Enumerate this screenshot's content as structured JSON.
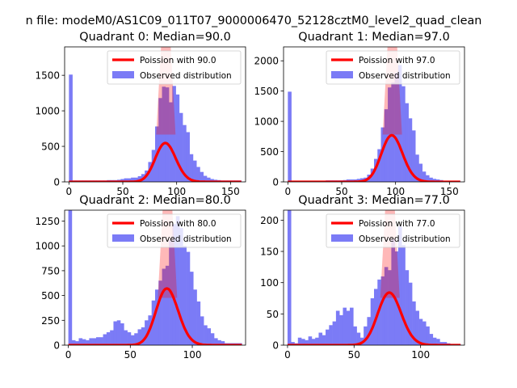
{
  "figure": {
    "suptitle": "n file: modeM0/AS1C09_011T07_9000006470_52128cztM0_level2_quad_clean"
  },
  "colors": {
    "hist": "#7b7bf6",
    "curve": "#ff0000",
    "axis": "#000000"
  },
  "chart_data": [
    {
      "type": "bar",
      "title": "Quadrant 0: Median=90.0",
      "legend": {
        "curve": "Poission with 90.0",
        "hist": "Observed distribution",
        "placement": "top-right"
      },
      "xlim": [
        -4,
        164
      ],
      "ylim": [
        0,
        1900
      ],
      "xticks": [
        0,
        50,
        100,
        150
      ],
      "yticks": [
        0,
        500,
        1000,
        1500
      ],
      "bin_width": 3.2,
      "bins": [
        [
          0,
          1510
        ],
        [
          3.2,
          20
        ],
        [
          6.4,
          20
        ],
        [
          9.6,
          20
        ],
        [
          12.8,
          20
        ],
        [
          16,
          20
        ],
        [
          19.2,
          20
        ],
        [
          22.4,
          20
        ],
        [
          25.6,
          20
        ],
        [
          28.8,
          20
        ],
        [
          32,
          20
        ],
        [
          35.2,
          25
        ],
        [
          38.4,
          25
        ],
        [
          41.6,
          25
        ],
        [
          44.8,
          30
        ],
        [
          48,
          40
        ],
        [
          51.2,
          50
        ],
        [
          54.4,
          50
        ],
        [
          57.6,
          60
        ],
        [
          60.8,
          60
        ],
        [
          64,
          80
        ],
        [
          67.2,
          110
        ],
        [
          70.4,
          160
        ],
        [
          73.6,
          280
        ],
        [
          76.8,
          450
        ],
        [
          80,
          780
        ],
        [
          83.2,
          1180
        ],
        [
          86.4,
          1340
        ],
        [
          89.6,
          1330
        ],
        [
          92.8,
          1120
        ],
        [
          96,
          1350
        ],
        [
          99.2,
          1230
        ],
        [
          102.4,
          970
        ],
        [
          105.6,
          800
        ],
        [
          108.8,
          700
        ],
        [
          112,
          390
        ],
        [
          115.2,
          300
        ],
        [
          118.4,
          210
        ],
        [
          121.6,
          140
        ],
        [
          124.8,
          85
        ],
        [
          128,
          60
        ],
        [
          131.2,
          40
        ],
        [
          134.4,
          30
        ],
        [
          137.6,
          25
        ],
        [
          140.8,
          20
        ],
        [
          144,
          20
        ],
        [
          147.2,
          20
        ],
        [
          150.4,
          20
        ],
        [
          153.6,
          20
        ],
        [
          156.8,
          20
        ]
      ],
      "poisson": {
        "lambda": 90.0,
        "total": 13000,
        "x_range": [
          0,
          160
        ],
        "fill_height": 1900
      }
    },
    {
      "type": "bar",
      "title": "Quadrant 1: Median=97.0",
      "legend": {
        "curve": "Poission with 97.0",
        "hist": "Observed distribution",
        "placement": "top-right"
      },
      "xlim": [
        -4,
        164
      ],
      "ylim": [
        0,
        2230
      ],
      "xticks": [
        0,
        50,
        100,
        150
      ],
      "yticks": [
        0,
        500,
        1000,
        1500,
        2000
      ],
      "bin_width": 3.2,
      "bins": [
        [
          0,
          1490
        ],
        [
          3.2,
          20
        ],
        [
          6.4,
          20
        ],
        [
          9.6,
          20
        ],
        [
          12.8,
          20
        ],
        [
          16,
          20
        ],
        [
          19.2,
          20
        ],
        [
          22.4,
          20
        ],
        [
          25.6,
          20
        ],
        [
          28.8,
          20
        ],
        [
          32,
          20
        ],
        [
          35.2,
          25
        ],
        [
          38.4,
          25
        ],
        [
          41.6,
          25
        ],
        [
          44.8,
          25
        ],
        [
          48,
          25
        ],
        [
          51.2,
          30
        ],
        [
          54.4,
          40
        ],
        [
          57.6,
          40
        ],
        [
          60.8,
          40
        ],
        [
          64,
          50
        ],
        [
          67.2,
          60
        ],
        [
          70.4,
          70
        ],
        [
          73.6,
          120
        ],
        [
          76.8,
          220
        ],
        [
          80,
          380
        ],
        [
          83.2,
          540
        ],
        [
          86.4,
          900
        ],
        [
          89.6,
          1200
        ],
        [
          92.8,
          1560
        ],
        [
          96,
          1640
        ],
        [
          99.2,
          1800
        ],
        [
          102.4,
          1930
        ],
        [
          105.6,
          1580
        ],
        [
          108.8,
          1300
        ],
        [
          112,
          1050
        ],
        [
          115.2,
          850
        ],
        [
          118.4,
          450
        ],
        [
          121.6,
          300
        ],
        [
          124.8,
          170
        ],
        [
          128,
          110
        ],
        [
          131.2,
          70
        ],
        [
          134.4,
          50
        ],
        [
          137.6,
          40
        ],
        [
          140.8,
          30
        ],
        [
          144,
          20
        ],
        [
          147.2,
          20
        ],
        [
          150.4,
          20
        ],
        [
          153.6,
          20
        ],
        [
          156.8,
          20
        ]
      ],
      "poisson": {
        "lambda": 97.0,
        "total": 19000,
        "x_range": [
          0,
          160
        ],
        "fill_height": 2230
      }
    },
    {
      "type": "bar",
      "title": "Quadrant 2: Median=80.0",
      "legend": {
        "curve": "Poission with 80.0",
        "hist": "Observed distribution",
        "placement": "top-right"
      },
      "xlim": [
        -3,
        143
      ],
      "ylim": [
        0,
        1360
      ],
      "xticks": [
        0,
        50,
        100
      ],
      "yticks": [
        0,
        250,
        500,
        750,
        1000,
        1250
      ],
      "bin_width": 2.8,
      "bins": [
        [
          0,
          1360
        ],
        [
          2.8,
          50
        ],
        [
          5.6,
          40
        ],
        [
          8.4,
          70
        ],
        [
          11.2,
          60
        ],
        [
          14,
          50
        ],
        [
          16.8,
          70
        ],
        [
          19.6,
          70
        ],
        [
          22.4,
          80
        ],
        [
          25.2,
          80
        ],
        [
          28,
          110
        ],
        [
          30.8,
          130
        ],
        [
          33.6,
          150
        ],
        [
          36.4,
          240
        ],
        [
          39.2,
          250
        ],
        [
          42,
          220
        ],
        [
          44.8,
          150
        ],
        [
          47.6,
          130
        ],
        [
          50.4,
          100
        ],
        [
          53.2,
          120
        ],
        [
          56,
          160
        ],
        [
          58.8,
          180
        ],
        [
          61.6,
          250
        ],
        [
          64.4,
          300
        ],
        [
          67.2,
          450
        ],
        [
          70,
          560
        ],
        [
          72.8,
          650
        ],
        [
          75.6,
          770
        ],
        [
          78.4,
          800
        ],
        [
          81.2,
          1060
        ],
        [
          84,
          1220
        ],
        [
          86.8,
          1300
        ],
        [
          89.6,
          1180
        ],
        [
          92.4,
          1000
        ],
        [
          95.2,
          940
        ],
        [
          98,
          740
        ],
        [
          100.8,
          560
        ],
        [
          103.6,
          440
        ],
        [
          106.4,
          290
        ],
        [
          109.2,
          200
        ],
        [
          112,
          170
        ],
        [
          114.8,
          120
        ],
        [
          117.6,
          70
        ],
        [
          120.4,
          50
        ],
        [
          123.2,
          40
        ],
        [
          126,
          20
        ],
        [
          128.8,
          20
        ],
        [
          131.6,
          20
        ],
        [
          134.4,
          20
        ],
        [
          137.2,
          20
        ]
      ],
      "poisson": {
        "lambda": 80.0,
        "total": 12800,
        "x_range": [
          0,
          140
        ],
        "fill_height": 1360
      }
    },
    {
      "type": "bar",
      "title": "Quadrant 3: Median=77.0",
      "legend": {
        "curve": "Poission with 77.0",
        "hist": "Observed distribution",
        "placement": "top-right"
      },
      "xlim": [
        -3,
        133
      ],
      "ylim": [
        0,
        216
      ],
      "xticks": [
        0,
        50,
        100
      ],
      "yticks": [
        0,
        50,
        100,
        150,
        200
      ],
      "bin_width": 2.6,
      "bins": [
        [
          0,
          216
        ],
        [
          2.6,
          5
        ],
        [
          5.2,
          3
        ],
        [
          7.8,
          12
        ],
        [
          10.4,
          10
        ],
        [
          13,
          8
        ],
        [
          15.6,
          14
        ],
        [
          18.2,
          10
        ],
        [
          20.8,
          12
        ],
        [
          23.4,
          20
        ],
        [
          26,
          16
        ],
        [
          28.6,
          25
        ],
        [
          31.2,
          32
        ],
        [
          33.8,
          38
        ],
        [
          36.4,
          55
        ],
        [
          39,
          48
        ],
        [
          41.6,
          60
        ],
        [
          44.2,
          55
        ],
        [
          46.8,
          60
        ],
        [
          49.4,
          30
        ],
        [
          52,
          20
        ],
        [
          54.6,
          12
        ],
        [
          57.2,
          30
        ],
        [
          59.8,
          45
        ],
        [
          62.4,
          75
        ],
        [
          65,
          90
        ],
        [
          67.6,
          105
        ],
        [
          70.2,
          110
        ],
        [
          72.8,
          125
        ],
        [
          75.4,
          120
        ],
        [
          78,
          170
        ],
        [
          80.6,
          150
        ],
        [
          83.2,
          190
        ],
        [
          85.8,
          160
        ],
        [
          88.4,
          120
        ],
        [
          91,
          100
        ],
        [
          93.6,
          70
        ],
        [
          96.2,
          55
        ],
        [
          98.8,
          42
        ],
        [
          101.4,
          38
        ],
        [
          104,
          30
        ],
        [
          106.6,
          18
        ],
        [
          109.2,
          12
        ],
        [
          111.8,
          10
        ],
        [
          114.4,
          5
        ],
        [
          117,
          5
        ],
        [
          119.6,
          3
        ],
        [
          122.2,
          2
        ],
        [
          124.8,
          2
        ],
        [
          127.4,
          2
        ]
      ],
      "poisson": {
        "lambda": 77.0,
        "total": 1850,
        "x_range": [
          0,
          130
        ],
        "fill_height": 216
      }
    }
  ]
}
